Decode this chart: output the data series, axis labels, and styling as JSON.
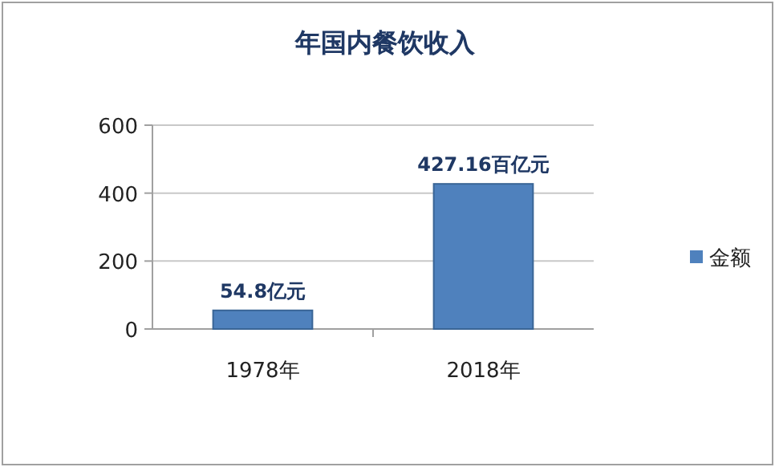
{
  "chart_data": {
    "type": "bar",
    "title": "年国内餐饮收入",
    "categories": [
      "1978年",
      "2018年"
    ],
    "series": [
      {
        "name": "金额",
        "color": "#4f81bd",
        "values": [
          54.8,
          427.16
        ],
        "value_labels": [
          "54.8亿元",
          "427.16百亿元"
        ]
      }
    ],
    "ylim": [
      0,
      600
    ],
    "yticks": [
      0,
      200,
      400,
      600
    ],
    "grid": "y",
    "legend": "right"
  }
}
